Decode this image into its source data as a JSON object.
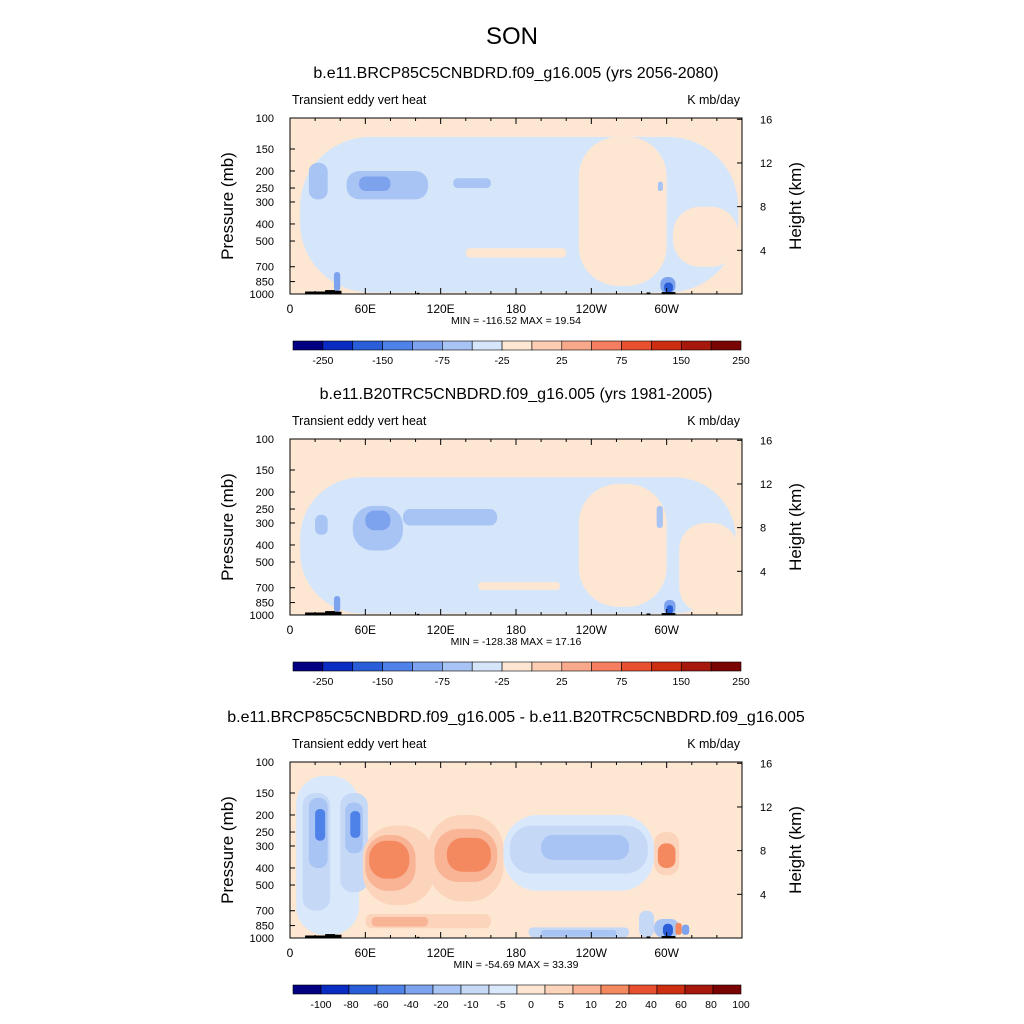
{
  "figure": {
    "title": "SON"
  },
  "colors": {
    "standard": [
      "#000080",
      "#0a2cc3",
      "#2a5ed8",
      "#4f82e8",
      "#7ea3ee",
      "#a8c4f4",
      "#d5e6fb",
      "#fee7d2",
      "#fccdb3",
      "#f8a98b",
      "#f47e5f",
      "#e8502f",
      "#cd2e12",
      "#a7180c",
      "#7a0403"
    ],
    "difference": [
      "#000080",
      "#0a2cc3",
      "#2a5ed8",
      "#4f82e8",
      "#7ea3ee",
      "#a8c4f4",
      "#c5d9f7",
      "#d9e8fb",
      "#fee7d2",
      "#fcd3bb",
      "#f9b395",
      "#f4885f",
      "#e8502f",
      "#cd2e12",
      "#a7180c",
      "#7a0403"
    ],
    "terrain": "#000000"
  },
  "chart_data": [
    {
      "type": "heatmap",
      "title": "b.e11.BRCP85C5CNBDRD.f09_g16.005 (yrs 2056-2080)",
      "left_label": "Transient eddy vert heat",
      "right_label": "K mb/day",
      "ylabel": "Pressure (mb)",
      "ylabel_right": "Height (km)",
      "xlabel": "",
      "xticks": [
        {
          "lon": 0,
          "label": "0"
        },
        {
          "lon": 60,
          "label": "60E"
        },
        {
          "lon": 120,
          "label": "120E"
        },
        {
          "lon": 180,
          "label": "180"
        },
        {
          "lon": 240,
          "label": "120W"
        },
        {
          "lon": 300,
          "label": "60W"
        }
      ],
      "yticks": [
        {
          "p": 100,
          "label": "100"
        },
        {
          "p": 150,
          "label": "150"
        },
        {
          "p": 200,
          "label": "200"
        },
        {
          "p": 250,
          "label": "250"
        },
        {
          "p": 300,
          "label": "300"
        },
        {
          "p": 400,
          "label": "400"
        },
        {
          "p": 500,
          "label": "500"
        },
        {
          "p": 700,
          "label": "700"
        },
        {
          "p": 850,
          "label": "850"
        },
        {
          "p": 1000,
          "label": "1000"
        }
      ],
      "height_ticks": [
        {
          "km": 4,
          "label": "4"
        },
        {
          "km": 8,
          "label": "8"
        },
        {
          "km": 12,
          "label": "12"
        },
        {
          "km": 16,
          "label": "16"
        }
      ],
      "xlim": [
        0,
        360
      ],
      "ylim": [
        1000,
        100
      ],
      "stats": "MIN = -116.52  MAX =  19.54",
      "colorbar": {
        "levels": [
          "-250",
          "-150",
          "-75",
          "-25",
          "25",
          "75",
          "150",
          "250"
        ],
        "palette": "standard"
      },
      "background_level": 7,
      "regions": [
        {
          "lon": [
            8,
            357
          ],
          "p": [
            128,
            980
          ],
          "level": 6
        },
        {
          "lon": [
            230,
            300
          ],
          "p": [
            128,
            900
          ],
          "level": 7
        },
        {
          "lon": [
            305,
            357
          ],
          "p": [
            320,
            700
          ],
          "level": 7
        },
        {
          "lon": [
            0,
            8
          ],
          "p": [
            400,
            1000
          ],
          "level": 7
        },
        {
          "lon": [
            15,
            30
          ],
          "p": [
            180,
            290
          ],
          "level": 5
        },
        {
          "lon": [
            45,
            110
          ],
          "p": [
            200,
            290
          ],
          "level": 5
        },
        {
          "lon": [
            55,
            80
          ],
          "p": [
            215,
            260
          ],
          "level": 4
        },
        {
          "lon": [
            130,
            160
          ],
          "p": [
            220,
            250
          ],
          "level": 5
        },
        {
          "lon": [
            35,
            40
          ],
          "p": [
            750,
            960
          ],
          "level": 4
        },
        {
          "lon": [
            295,
            307
          ],
          "p": [
            800,
            990
          ],
          "level": 4
        },
        {
          "lon": [
            298,
            305
          ],
          "p": [
            860,
            980
          ],
          "level": 2
        },
        {
          "lon": [
            293,
            297
          ],
          "p": [
            230,
            260
          ],
          "level": 5
        },
        {
          "lon": [
            140,
            220
          ],
          "p": [
            550,
            620
          ],
          "level": 7
        }
      ],
      "terrain": [
        {
          "lon": [
            12,
            40
          ],
          "p": 968
        },
        {
          "lon": [
            28,
            36
          ],
          "p": 950
        },
        {
          "lon": [
            36,
            41
          ],
          "p": 958
        },
        {
          "lon": [
            101,
            103
          ],
          "p": 985
        },
        {
          "lon": [
            284,
            287
          ],
          "p": 980
        },
        {
          "lon": [
            296,
            307
          ],
          "p": 975
        }
      ]
    },
    {
      "type": "heatmap",
      "title": "b.e11.B20TRC5CNBDRD.f09_g16.005 (yrs 1981-2005)",
      "left_label": "Transient eddy vert heat",
      "right_label": "K mb/day",
      "ylabel": "Pressure (mb)",
      "ylabel_right": "Height (km)",
      "xlabel": "",
      "xticks": [
        {
          "lon": 0,
          "label": "0"
        },
        {
          "lon": 60,
          "label": "60E"
        },
        {
          "lon": 120,
          "label": "120E"
        },
        {
          "lon": 180,
          "label": "180"
        },
        {
          "lon": 240,
          "label": "120W"
        },
        {
          "lon": 300,
          "label": "60W"
        }
      ],
      "yticks": [
        {
          "p": 100,
          "label": "100"
        },
        {
          "p": 150,
          "label": "150"
        },
        {
          "p": 200,
          "label": "200"
        },
        {
          "p": 250,
          "label": "250"
        },
        {
          "p": 300,
          "label": "300"
        },
        {
          "p": 400,
          "label": "400"
        },
        {
          "p": 500,
          "label": "500"
        },
        {
          "p": 700,
          "label": "700"
        },
        {
          "p": 850,
          "label": "850"
        },
        {
          "p": 1000,
          "label": "1000"
        }
      ],
      "height_ticks": [
        {
          "km": 4,
          "label": "4"
        },
        {
          "km": 8,
          "label": "8"
        },
        {
          "km": 12,
          "label": "12"
        },
        {
          "km": 16,
          "label": "16"
        }
      ],
      "xlim": [
        0,
        360
      ],
      "ylim": [
        1000,
        100
      ],
      "stats": "MIN = -128.38  MAX =  17.16",
      "colorbar": {
        "levels": [
          "-250",
          "-150",
          "-75",
          "-25",
          "25",
          "75",
          "150",
          "250"
        ],
        "palette": "standard"
      },
      "background_level": 7,
      "regions": [
        {
          "lon": [
            8,
            355
          ],
          "p": [
            165,
            980
          ],
          "level": 6
        },
        {
          "lon": [
            230,
            300
          ],
          "p": [
            180,
            900
          ],
          "level": 7
        },
        {
          "lon": [
            310,
            357
          ],
          "p": [
            300,
            980
          ],
          "level": 7
        },
        {
          "lon": [
            0,
            8
          ],
          "p": [
            300,
            1000
          ],
          "level": 7
        },
        {
          "lon": [
            50,
            90
          ],
          "p": [
            240,
            430
          ],
          "level": 5
        },
        {
          "lon": [
            60,
            80
          ],
          "p": [
            255,
            330
          ],
          "level": 4
        },
        {
          "lon": [
            90,
            165
          ],
          "p": [
            250,
            310
          ],
          "level": 5
        },
        {
          "lon": [
            20,
            30
          ],
          "p": [
            270,
            350
          ],
          "level": 5
        },
        {
          "lon": [
            292,
            297
          ],
          "p": [
            240,
            320
          ],
          "level": 5
        },
        {
          "lon": [
            35,
            40
          ],
          "p": [
            780,
            960
          ],
          "level": 4
        },
        {
          "lon": [
            298,
            307
          ],
          "p": [
            820,
            990
          ],
          "level": 4
        },
        {
          "lon": [
            300,
            305
          ],
          "p": [
            880,
            980
          ],
          "level": 2
        },
        {
          "lon": [
            150,
            215
          ],
          "p": [
            650,
            720
          ],
          "level": 7
        }
      ],
      "terrain": [
        {
          "lon": [
            12,
            40
          ],
          "p": 968
        },
        {
          "lon": [
            28,
            36
          ],
          "p": 950
        },
        {
          "lon": [
            36,
            41
          ],
          "p": 958
        },
        {
          "lon": [
            101,
            103
          ],
          "p": 985
        },
        {
          "lon": [
            284,
            287
          ],
          "p": 980
        },
        {
          "lon": [
            296,
            307
          ],
          "p": 975
        }
      ]
    },
    {
      "type": "heatmap",
      "title": "b.e11.BRCP85C5CNBDRD.f09_g16.005 - b.e11.B20TRC5CNBDRD.f09_g16.005",
      "left_label": "Transient eddy vert heat",
      "right_label": "K mb/day",
      "ylabel": "Pressure (mb)",
      "ylabel_right": "Height (km)",
      "xlabel": "",
      "xticks": [
        {
          "lon": 0,
          "label": "0"
        },
        {
          "lon": 60,
          "label": "60E"
        },
        {
          "lon": 120,
          "label": "120E"
        },
        {
          "lon": 180,
          "label": "180"
        },
        {
          "lon": 240,
          "label": "120W"
        },
        {
          "lon": 300,
          "label": "60W"
        }
      ],
      "yticks": [
        {
          "p": 100,
          "label": "100"
        },
        {
          "p": 150,
          "label": "150"
        },
        {
          "p": 200,
          "label": "200"
        },
        {
          "p": 250,
          "label": "250"
        },
        {
          "p": 300,
          "label": "300"
        },
        {
          "p": 400,
          "label": "400"
        },
        {
          "p": 500,
          "label": "500"
        },
        {
          "p": 700,
          "label": "700"
        },
        {
          "p": 850,
          "label": "850"
        },
        {
          "p": 1000,
          "label": "1000"
        }
      ],
      "height_ticks": [
        {
          "km": 4,
          "label": "4"
        },
        {
          "km": 8,
          "label": "8"
        },
        {
          "km": 12,
          "label": "12"
        },
        {
          "km": 16,
          "label": "16"
        }
      ],
      "xlim": [
        0,
        360
      ],
      "ylim": [
        1000,
        100
      ],
      "stats": "MIN = -54.69  MAX =  33.39",
      "colorbar": {
        "levels": [
          "-100",
          "-80",
          "-60",
          "-40",
          "-20",
          "-10",
          "-5",
          "0",
          "5",
          "10",
          "20",
          "40",
          "60",
          "80",
          "100"
        ],
        "palette": "difference"
      },
      "background_level": 8,
      "regions": [
        {
          "lon": [
            5,
            55
          ],
          "p": [
            120,
            960
          ],
          "level": 7
        },
        {
          "lon": [
            10,
            32
          ],
          "p": [
            150,
            700
          ],
          "level": 6
        },
        {
          "lon": [
            15,
            30
          ],
          "p": [
            160,
            400
          ],
          "level": 5
        },
        {
          "lon": [
            20,
            28
          ],
          "p": [
            185,
            280
          ],
          "level": 3
        },
        {
          "lon": [
            40,
            62
          ],
          "p": [
            150,
            550
          ],
          "level": 6
        },
        {
          "lon": [
            44,
            58
          ],
          "p": [
            170,
            330
          ],
          "level": 5
        },
        {
          "lon": [
            48,
            56
          ],
          "p": [
            190,
            270
          ],
          "level": 3
        },
        {
          "lon": [
            58,
            115
          ],
          "p": [
            230,
            650
          ],
          "level": 9
        },
        {
          "lon": [
            60,
            100
          ],
          "p": [
            260,
            540
          ],
          "level": 10
        },
        {
          "lon": [
            63,
            95
          ],
          "p": [
            280,
            460
          ],
          "level": 11
        },
        {
          "lon": [
            110,
            170
          ],
          "p": [
            200,
            620
          ],
          "level": 9
        },
        {
          "lon": [
            115,
            165
          ],
          "p": [
            240,
            480
          ],
          "level": 10
        },
        {
          "lon": [
            125,
            160
          ],
          "p": [
            270,
            420
          ],
          "level": 11
        },
        {
          "lon": [
            170,
            290
          ],
          "p": [
            200,
            540
          ],
          "level": 7
        },
        {
          "lon": [
            175,
            285
          ],
          "p": [
            230,
            430
          ],
          "level": 6
        },
        {
          "lon": [
            200,
            270
          ],
          "p": [
            260,
            360
          ],
          "level": 5
        },
        {
          "lon": [
            290,
            310
          ],
          "p": [
            250,
            440
          ],
          "level": 9
        },
        {
          "lon": [
            293,
            307
          ],
          "p": [
            290,
            400
          ],
          "level": 11
        },
        {
          "lon": [
            60,
            160
          ],
          "p": [
            730,
            880
          ],
          "level": 9
        },
        {
          "lon": [
            65,
            110
          ],
          "p": [
            760,
            860
          ],
          "level": 10
        },
        {
          "lon": [
            190,
            270
          ],
          "p": [
            870,
            990
          ],
          "level": 6
        },
        {
          "lon": [
            200,
            260
          ],
          "p": [
            900,
            980
          ],
          "level": 5
        },
        {
          "lon": [
            278,
            290
          ],
          "p": [
            700,
            990
          ],
          "level": 6
        },
        {
          "lon": [
            290,
            310
          ],
          "p": [
            780,
            990
          ],
          "level": 5
        },
        {
          "lon": [
            297,
            305
          ],
          "p": [
            830,
            980
          ],
          "level": 2
        },
        {
          "lon": [
            307,
            312
          ],
          "p": [
            820,
            960
          ],
          "level": 11
        },
        {
          "lon": [
            312,
            318
          ],
          "p": [
            840,
            960
          ],
          "level": 4
        }
      ],
      "terrain": [
        {
          "lon": [
            12,
            40
          ],
          "p": 968
        },
        {
          "lon": [
            28,
            36
          ],
          "p": 950
        },
        {
          "lon": [
            36,
            41
          ],
          "p": 958
        },
        {
          "lon": [
            101,
            103
          ],
          "p": 985
        },
        {
          "lon": [
            284,
            287
          ],
          "p": 980
        },
        {
          "lon": [
            296,
            307
          ],
          "p": 975
        }
      ]
    }
  ]
}
